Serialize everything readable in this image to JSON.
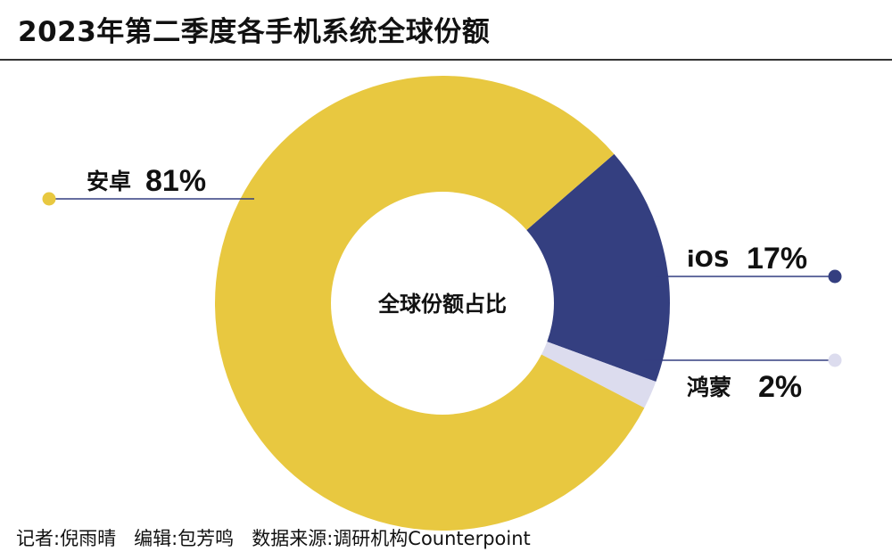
{
  "title": "2023年第二季度各手机系统全球份额",
  "footer": {
    "reporter": "记者:倪雨晴",
    "editor": "编辑:包芳鸣",
    "source": "数据来源:调研机构Counterpoint"
  },
  "chart_data": {
    "type": "pie",
    "title": "2023年第二季度各手机系统全球份额",
    "center_label": "全球份额占比",
    "series": [
      {
        "name": "安卓",
        "label": "81%",
        "value": 81,
        "color": "#E8C840"
      },
      {
        "name": "iOS",
        "label": "17%",
        "value": 17,
        "color": "#343F80"
      },
      {
        "name": "鸿蒙",
        "label": "2%",
        "value": 2,
        "color": "#DCDCEE"
      }
    ]
  },
  "colors": {
    "android": "#E8C840",
    "ios": "#343F80",
    "harmony": "#DCDCEE",
    "leader_line": "#343F80"
  }
}
